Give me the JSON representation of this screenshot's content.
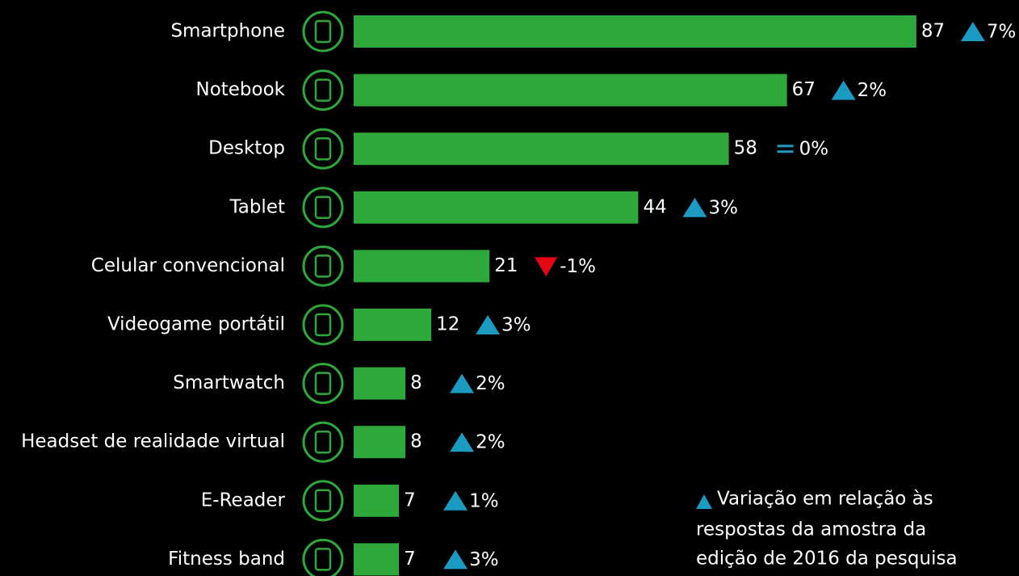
{
  "chart_data": {
    "type": "bar",
    "orientation": "horizontal",
    "categories": [
      "Smartphone",
      "Notebook",
      "Desktop",
      "Tablet",
      "Celular convencional",
      "Videogame portátil",
      "Smartwatch",
      "Headset de realidade virtual",
      "E-Reader",
      "Fitness band"
    ],
    "values": [
      87,
      67,
      58,
      44,
      21,
      12,
      8,
      8,
      7,
      7
    ],
    "color": "#2ea83a",
    "changes": {
      "values": [
        7,
        2,
        0,
        3,
        -1,
        3,
        2,
        2,
        1,
        3
      ],
      "value_labels": [
        "7%",
        "2%",
        "0%",
        "3%",
        "-1%",
        "3%",
        "2%",
        "2%",
        "1%",
        "3%"
      ],
      "up_color": "#1b9ac2",
      "down_color": "#e30613",
      "equal_color": "#1b9ac2"
    },
    "note": [
      "Variação em relação às",
      "respostas da amostra da",
      "edição de 2016 da pesquisa"
    ]
  }
}
